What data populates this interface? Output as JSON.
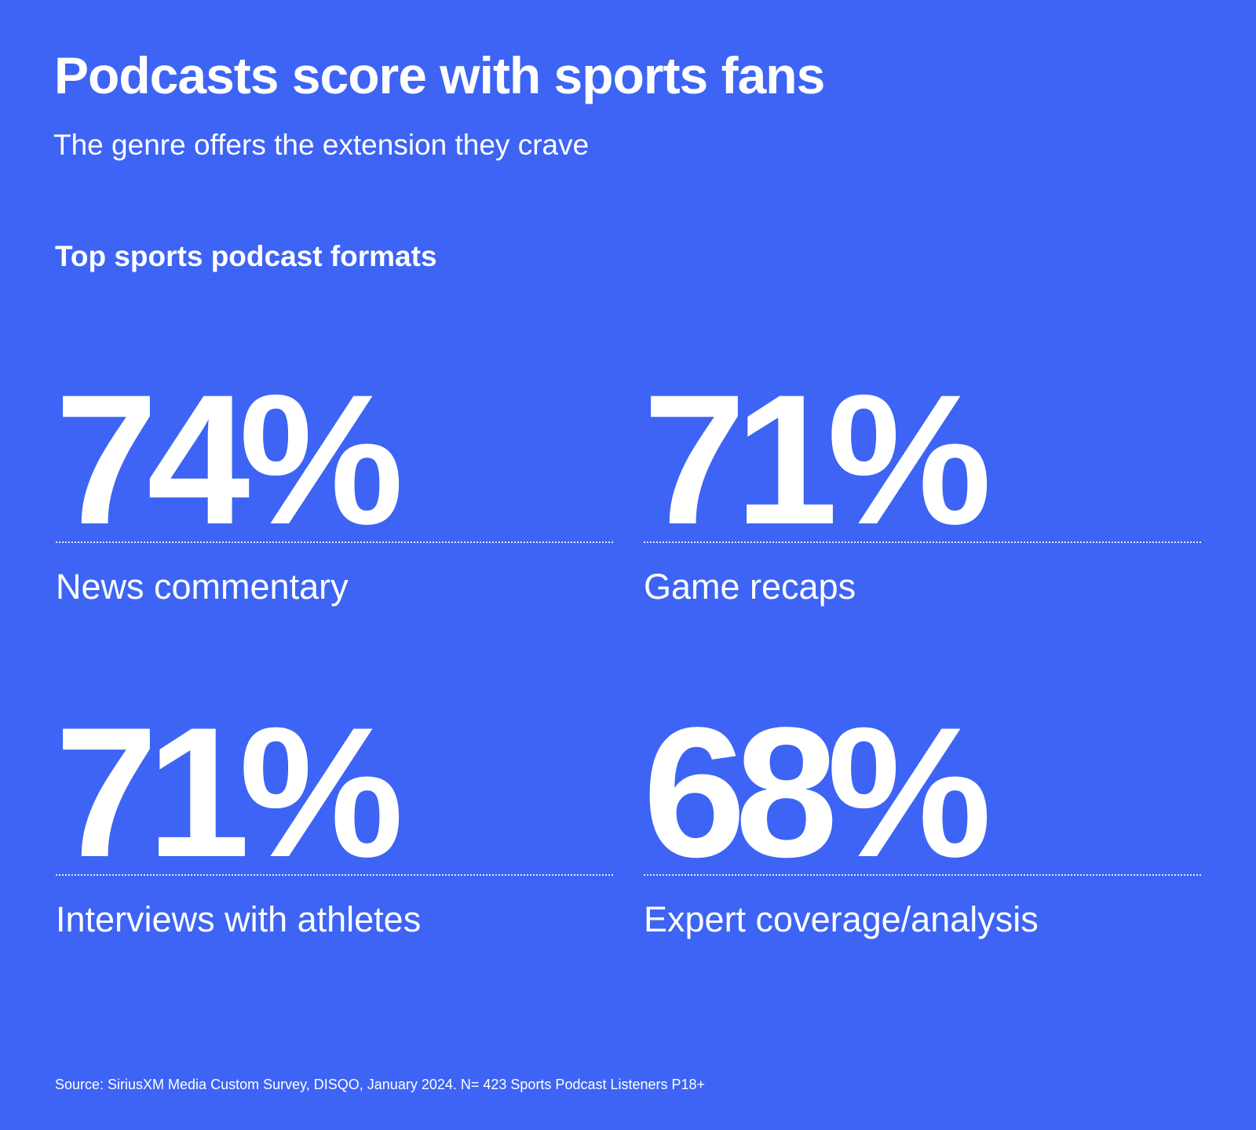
{
  "header": {
    "title": "Podcasts score with sports fans",
    "subtitle": "The genre offers the extension they crave"
  },
  "section_title": "Top sports podcast formats",
  "stats": [
    {
      "value": "74%",
      "label": "News commentary"
    },
    {
      "value": "71%",
      "label": "Game recaps"
    },
    {
      "value": "71%",
      "label": "Interviews with athletes"
    },
    {
      "value": "68%",
      "label": "Expert coverage/analysis"
    }
  ],
  "source": "Source: SiriusXM Media Custom Survey, DISQO, January 2024. N= 423 Sports Podcast Listeners P18+"
}
